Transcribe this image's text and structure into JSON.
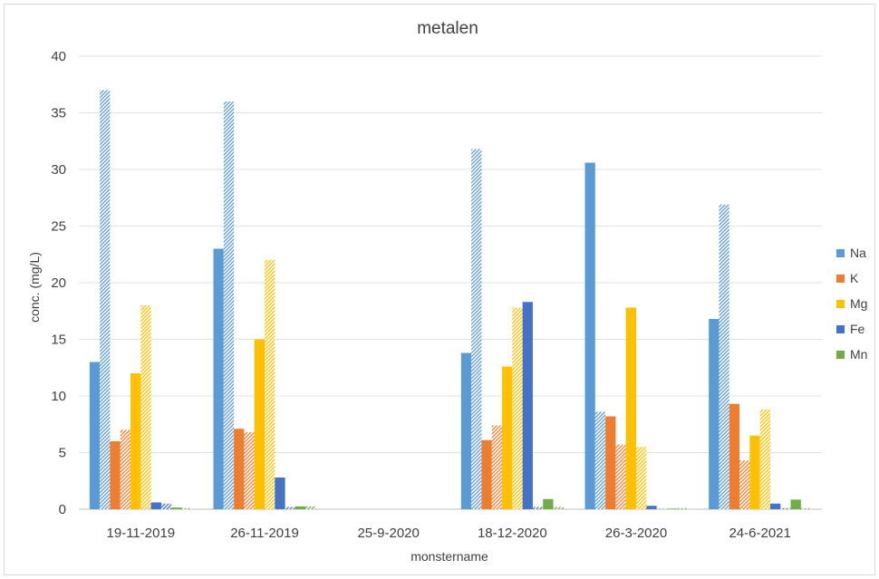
{
  "chart_data": {
    "type": "bar",
    "title": "metalen",
    "xlabel": "monstername",
    "ylabel": "conc. (mg/L)",
    "ylim": [
      0,
      40
    ],
    "yticks": [
      0,
      5,
      10,
      15,
      20,
      25,
      30,
      35,
      40
    ],
    "grid": true,
    "legend_position": "right",
    "categories": [
      "19-11-2019",
      "26-11-2019",
      "25-9-2020",
      "18-12-2020",
      "26-3-2020",
      "24-6-2021"
    ],
    "series": [
      {
        "name": "Na",
        "color": "#5B9BD5",
        "pattern": "solid",
        "values": [
          13.0,
          23.0,
          null,
          13.8,
          30.6,
          16.8
        ]
      },
      {
        "name": "",
        "color": "#5B9BD5",
        "pattern": "hatched",
        "values": [
          37.0,
          36.0,
          null,
          31.8,
          8.6,
          26.9
        ]
      },
      {
        "name": "K",
        "color": "#ED7D31",
        "pattern": "solid",
        "values": [
          6.0,
          7.1,
          null,
          6.1,
          8.2,
          9.3
        ]
      },
      {
        "name": "",
        "color": "#ED7D31",
        "pattern": "hatched",
        "values": [
          7.0,
          6.8,
          null,
          7.4,
          5.7,
          4.3
        ]
      },
      {
        "name": "Mg",
        "color": "#FFC000",
        "pattern": "solid",
        "values": [
          12.0,
          15.0,
          null,
          12.6,
          17.8,
          6.5
        ]
      },
      {
        "name": "",
        "color": "#FFC000",
        "pattern": "hatched",
        "values": [
          18.0,
          22.0,
          null,
          17.8,
          5.5,
          8.8
        ]
      },
      {
        "name": "Fe",
        "color": "#4472C4",
        "pattern": "solid",
        "values": [
          0.6,
          2.8,
          null,
          18.3,
          0.3,
          0.5
        ]
      },
      {
        "name": "",
        "color": "#4472C4",
        "pattern": "hatched",
        "values": [
          0.5,
          0.2,
          null,
          0.2,
          0.05,
          0.1
        ]
      },
      {
        "name": "Mn",
        "color": "#70AD47",
        "pattern": "solid",
        "values": [
          0.15,
          0.25,
          null,
          0.9,
          0.05,
          0.85
        ]
      },
      {
        "name": "",
        "color": "#70AD47",
        "pattern": "hatched",
        "values": [
          0.1,
          0.25,
          null,
          0.2,
          0.1,
          0.1
        ]
      }
    ],
    "legend": [
      "Na",
      "K",
      "Mg",
      "Fe",
      "Mn"
    ]
  }
}
